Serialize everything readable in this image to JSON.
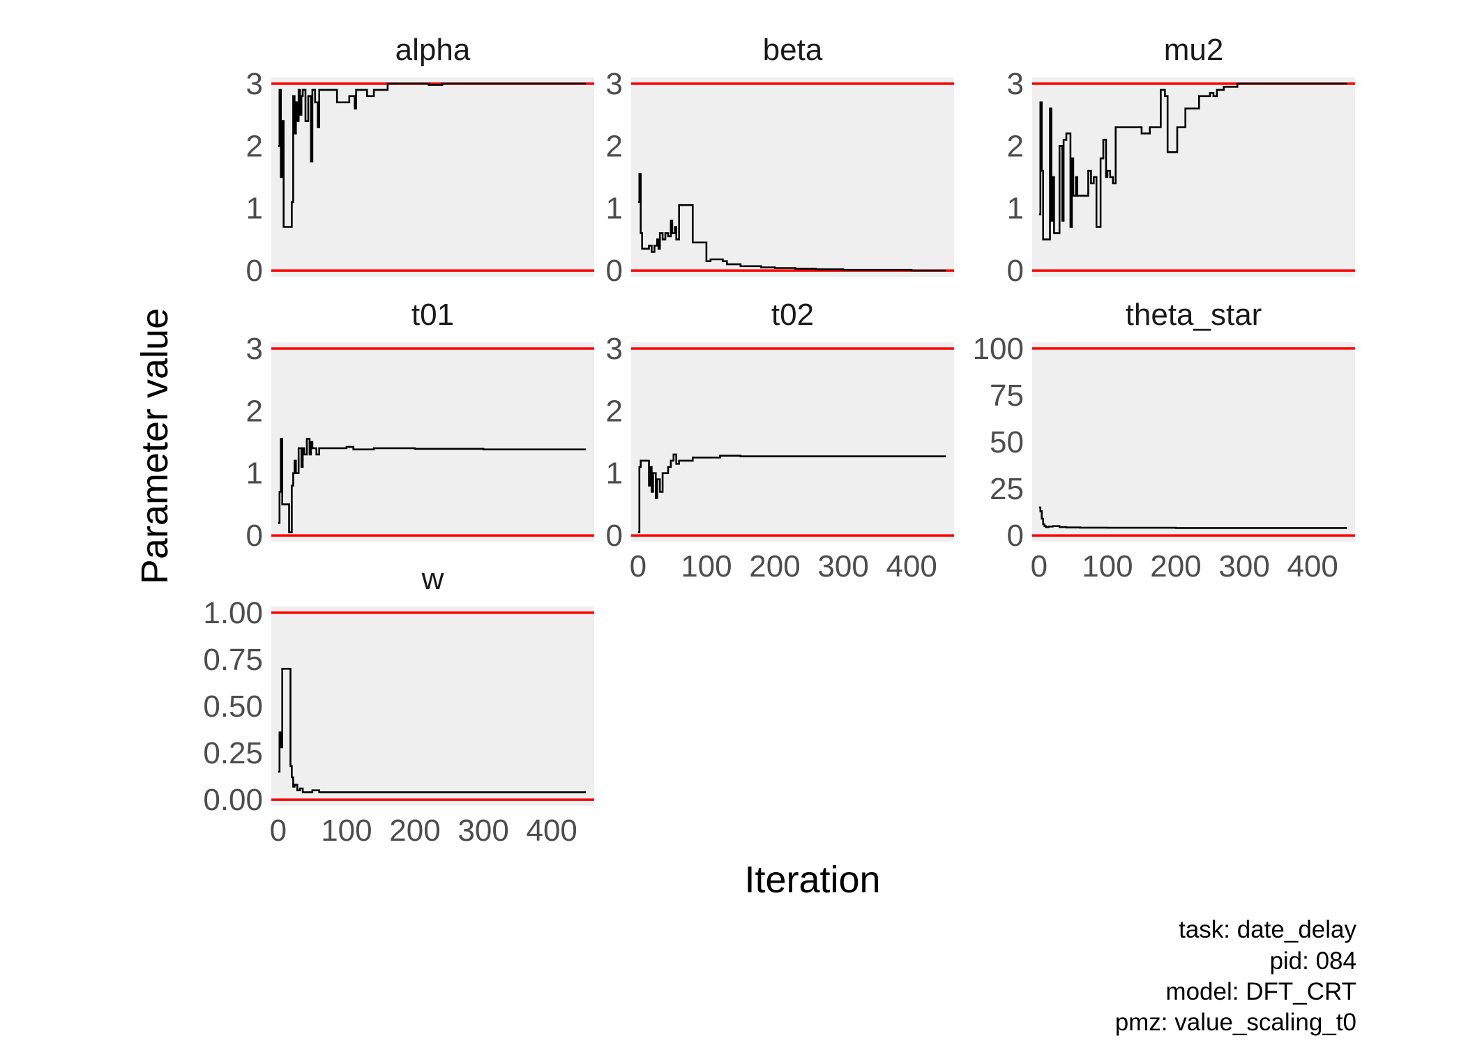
{
  "chart_data": {
    "type": "line",
    "xlabel": "Iteration",
    "ylabel": "Parameter value",
    "xlim": [
      -10,
      462
    ],
    "x_ticks": [
      0,
      100,
      200,
      300,
      400
    ],
    "grid": false,
    "bound_color": "#ff0000",
    "trace_color": "#000000",
    "panel_background": "#efefef",
    "caption": [
      "task: date_delay",
      "pid: 084",
      "model: DFT_CRT",
      "pmz: value_scaling_t0"
    ],
    "panels": [
      {
        "name": "alpha",
        "bounds": [
          0,
          3
        ],
        "ylim": [
          -0.1,
          3.1
        ],
        "y_ticks": [
          0,
          1,
          2,
          3
        ],
        "x_tick_labels_shown": false,
        "trace": [
          [
            0,
            2.0
          ],
          [
            2,
            2.9
          ],
          [
            4,
            1.5
          ],
          [
            6,
            2.4
          ],
          [
            8,
            0.7
          ],
          [
            12,
            0.7
          ],
          [
            18,
            0.7
          ],
          [
            20,
            1.1
          ],
          [
            22,
            2.8
          ],
          [
            24,
            2.2
          ],
          [
            26,
            2.7
          ],
          [
            28,
            2.4
          ],
          [
            30,
            2.9
          ],
          [
            32,
            2.5
          ],
          [
            34,
            2.8
          ],
          [
            36,
            2.9
          ],
          [
            40,
            2.4
          ],
          [
            44,
            2.8
          ],
          [
            48,
            1.75
          ],
          [
            50,
            2.9
          ],
          [
            54,
            2.7
          ],
          [
            58,
            2.3
          ],
          [
            60,
            2.9
          ],
          [
            80,
            2.9
          ],
          [
            86,
            2.7
          ],
          [
            100,
            2.7
          ],
          [
            104,
            2.8
          ],
          [
            112,
            2.6
          ],
          [
            114,
            2.9
          ],
          [
            128,
            2.9
          ],
          [
            130,
            2.8
          ],
          [
            140,
            2.9
          ],
          [
            160,
            3.0
          ],
          [
            220,
            2.98
          ],
          [
            240,
            3.0
          ],
          [
            450,
            3.0
          ]
        ]
      },
      {
        "name": "beta",
        "bounds": [
          0,
          3
        ],
        "ylim": [
          -0.1,
          3.1
        ],
        "y_ticks": [
          0,
          1,
          2,
          3
        ],
        "x_tick_labels_shown": false,
        "trace": [
          [
            0,
            1.1
          ],
          [
            2,
            1.55
          ],
          [
            4,
            0.6
          ],
          [
            6,
            0.35
          ],
          [
            14,
            0.35
          ],
          [
            16,
            0.4
          ],
          [
            20,
            0.3
          ],
          [
            24,
            0.4
          ],
          [
            28,
            0.5
          ],
          [
            30,
            0.35
          ],
          [
            32,
            0.6
          ],
          [
            36,
            0.5
          ],
          [
            40,
            0.6
          ],
          [
            44,
            0.55
          ],
          [
            48,
            0.8
          ],
          [
            50,
            0.6
          ],
          [
            54,
            0.7
          ],
          [
            56,
            0.5
          ],
          [
            60,
            1.05
          ],
          [
            78,
            1.05
          ],
          [
            80,
            0.45
          ],
          [
            98,
            0.45
          ],
          [
            100,
            0.15
          ],
          [
            106,
            0.18
          ],
          [
            124,
            0.15
          ],
          [
            130,
            0.1
          ],
          [
            150,
            0.07
          ],
          [
            180,
            0.05
          ],
          [
            200,
            0.04
          ],
          [
            230,
            0.03
          ],
          [
            260,
            0.02
          ],
          [
            300,
            0.01
          ],
          [
            350,
            0.01
          ],
          [
            400,
            0.0
          ],
          [
            450,
            0.0
          ]
        ]
      },
      {
        "name": "mu2",
        "bounds": [
          0,
          3
        ],
        "ylim": [
          -0.1,
          3.1
        ],
        "y_ticks": [
          0,
          1,
          2,
          3
        ],
        "x_tick_labels_shown": false,
        "trace": [
          [
            0,
            0.9
          ],
          [
            2,
            2.7
          ],
          [
            4,
            1.6
          ],
          [
            6,
            0.5
          ],
          [
            14,
            0.5
          ],
          [
            16,
            2.6
          ],
          [
            18,
            0.8
          ],
          [
            20,
            1.5
          ],
          [
            22,
            0.6
          ],
          [
            28,
            0.6
          ],
          [
            30,
            2.0
          ],
          [
            34,
            0.8
          ],
          [
            36,
            2.1
          ],
          [
            40,
            2.2
          ],
          [
            46,
            0.7
          ],
          [
            48,
            1.8
          ],
          [
            50,
            1.2
          ],
          [
            54,
            1.5
          ],
          [
            56,
            1.2
          ],
          [
            70,
            1.2
          ],
          [
            72,
            1.6
          ],
          [
            76,
            1.4
          ],
          [
            80,
            1.5
          ],
          [
            84,
            0.7
          ],
          [
            90,
            1.8
          ],
          [
            94,
            2.1
          ],
          [
            98,
            1.5
          ],
          [
            100,
            1.6
          ],
          [
            104,
            1.5
          ],
          [
            108,
            1.4
          ],
          [
            112,
            2.3
          ],
          [
            140,
            2.3
          ],
          [
            150,
            2.2
          ],
          [
            160,
            2.2
          ],
          [
            162,
            2.3
          ],
          [
            176,
            2.3
          ],
          [
            178,
            2.9
          ],
          [
            184,
            2.8
          ],
          [
            188,
            1.9
          ],
          [
            200,
            1.9
          ],
          [
            202,
            2.3
          ],
          [
            210,
            2.3
          ],
          [
            214,
            2.6
          ],
          [
            230,
            2.6
          ],
          [
            234,
            2.8
          ],
          [
            250,
            2.85
          ],
          [
            255,
            2.8
          ],
          [
            260,
            2.9
          ],
          [
            270,
            2.95
          ],
          [
            290,
            3.0
          ],
          [
            450,
            3.0
          ]
        ]
      },
      {
        "name": "t01",
        "bounds": [
          0,
          3
        ],
        "ylim": [
          -0.1,
          3.1
        ],
        "y_ticks": [
          0,
          1,
          2,
          3
        ],
        "x_tick_labels_shown": false,
        "trace": [
          [
            0,
            0.2
          ],
          [
            2,
            0.7
          ],
          [
            4,
            1.55
          ],
          [
            6,
            0.5
          ],
          [
            8,
            0.5
          ],
          [
            14,
            0.5
          ],
          [
            16,
            0.05
          ],
          [
            20,
            0.8
          ],
          [
            22,
            1.0
          ],
          [
            24,
            1.2
          ],
          [
            26,
            1.0
          ],
          [
            30,
            1.4
          ],
          [
            34,
            1.1
          ],
          [
            36,
            1.4
          ],
          [
            38,
            1.3
          ],
          [
            42,
            1.55
          ],
          [
            46,
            1.3
          ],
          [
            48,
            1.5
          ],
          [
            50,
            1.4
          ],
          [
            56,
            1.3
          ],
          [
            60,
            1.4
          ],
          [
            80,
            1.4
          ],
          [
            100,
            1.42
          ],
          [
            110,
            1.38
          ],
          [
            140,
            1.4
          ],
          [
            200,
            1.39
          ],
          [
            300,
            1.38
          ],
          [
            450,
            1.38
          ]
        ]
      },
      {
        "name": "t02",
        "bounds": [
          0,
          3
        ],
        "ylim": [
          -0.1,
          3.1
        ],
        "y_ticks": [
          0,
          1,
          2,
          3
        ],
        "x_tick_labels_shown": true,
        "trace": [
          [
            0,
            0.05
          ],
          [
            2,
            1.1
          ],
          [
            4,
            1.2
          ],
          [
            14,
            1.2
          ],
          [
            16,
            0.8
          ],
          [
            18,
            1.1
          ],
          [
            20,
            0.7
          ],
          [
            22,
            1.0
          ],
          [
            26,
            0.6
          ],
          [
            28,
            0.9
          ],
          [
            32,
            0.7
          ],
          [
            36,
            1.0
          ],
          [
            40,
            1.0
          ],
          [
            44,
            1.1
          ],
          [
            48,
            1.2
          ],
          [
            52,
            1.3
          ],
          [
            56,
            1.15
          ],
          [
            60,
            1.2
          ],
          [
            80,
            1.25
          ],
          [
            100,
            1.25
          ],
          [
            120,
            1.28
          ],
          [
            150,
            1.27
          ],
          [
            200,
            1.27
          ],
          [
            300,
            1.27
          ],
          [
            450,
            1.27
          ]
        ]
      },
      {
        "name": "theta_star",
        "bounds": [
          0,
          100
        ],
        "ylim": [
          -3.3,
          103.3
        ],
        "y_ticks": [
          0,
          25,
          50,
          75,
          100
        ],
        "x_tick_labels_shown": true,
        "trace": [
          [
            0,
            15
          ],
          [
            2,
            13
          ],
          [
            4,
            9
          ],
          [
            6,
            6
          ],
          [
            8,
            5
          ],
          [
            10,
            4.5
          ],
          [
            14,
            4.8
          ],
          [
            20,
            5
          ],
          [
            30,
            4.5
          ],
          [
            40,
            4.3
          ],
          [
            60,
            4.2
          ],
          [
            100,
            4.1
          ],
          [
            200,
            4.0
          ],
          [
            300,
            4.0
          ],
          [
            450,
            4.0
          ]
        ]
      },
      {
        "name": "w",
        "bounds": [
          0,
          1
        ],
        "ylim": [
          -0.033,
          1.033
        ],
        "y_ticks": [
          0,
          0.25,
          0.5,
          0.75,
          1
        ],
        "y_tick_labels": [
          "0.00",
          "0.25",
          "0.50",
          "0.75",
          "1.00"
        ],
        "x_tick_labels_shown": true,
        "trace": [
          [
            0,
            0.15
          ],
          [
            2,
            0.36
          ],
          [
            4,
            0.28
          ],
          [
            6,
            0.7
          ],
          [
            16,
            0.7
          ],
          [
            18,
            0.18
          ],
          [
            20,
            0.12
          ],
          [
            22,
            0.07
          ],
          [
            24,
            0.08
          ],
          [
            28,
            0.05
          ],
          [
            32,
            0.06
          ],
          [
            36,
            0.04
          ],
          [
            40,
            0.04
          ],
          [
            50,
            0.05
          ],
          [
            60,
            0.04
          ],
          [
            80,
            0.04
          ],
          [
            100,
            0.04
          ],
          [
            200,
            0.04
          ],
          [
            450,
            0.04
          ]
        ]
      }
    ]
  }
}
